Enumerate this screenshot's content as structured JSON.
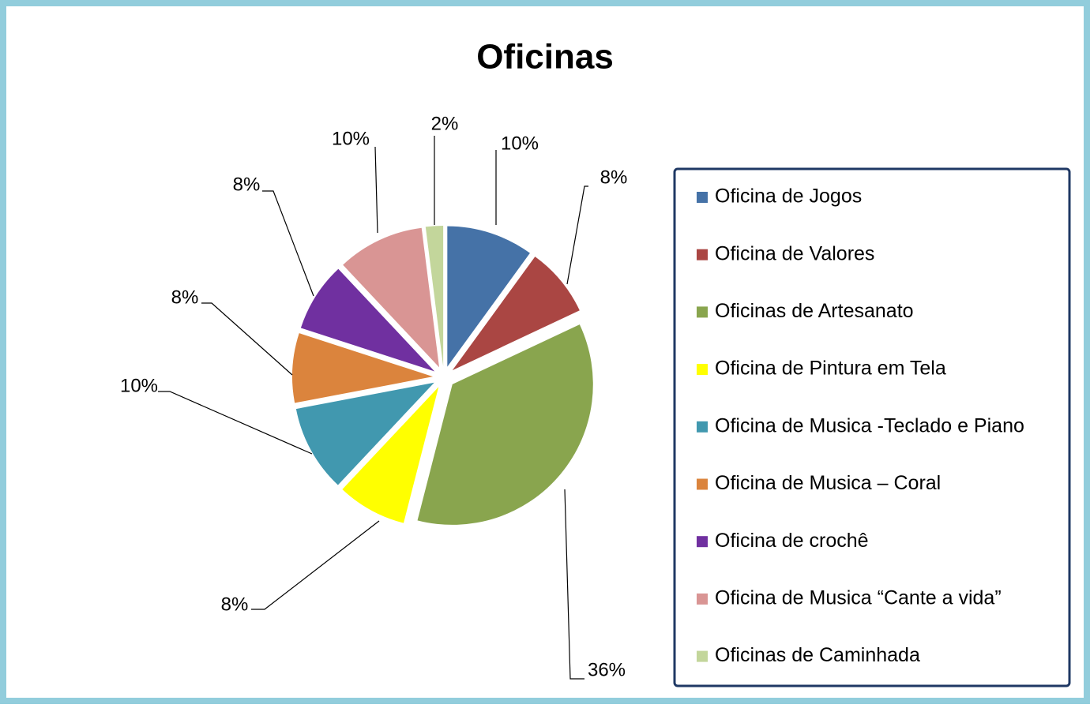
{
  "chart_data": {
    "type": "pie",
    "title": "Oficinas",
    "categories": [
      "Oficina de Jogos",
      "Oficina de Valores",
      "Oficinas de Artesanato",
      "Oficina de Pintura em Tela",
      "Oficina de Musica -Teclado e Piano",
      "Oficina de Musica – Coral",
      "Oficina de crochê",
      "Oficina de Musica “Cante a vida”",
      "Oficinas de Caminhada"
    ],
    "values": [
      10,
      8,
      36,
      8,
      10,
      8,
      8,
      10,
      2
    ],
    "value_labels": [
      "10%",
      "8%",
      "36%",
      "8%",
      "10%",
      "8%",
      "8%",
      "10%",
      "2%"
    ],
    "colors": [
      "#4572a7",
      "#aa4643",
      "#89a54e",
      "#ffff00",
      "#4198af",
      "#db843d",
      "#7030a0",
      "#d99594",
      "#c3d69b"
    ],
    "legend": "right"
  }
}
